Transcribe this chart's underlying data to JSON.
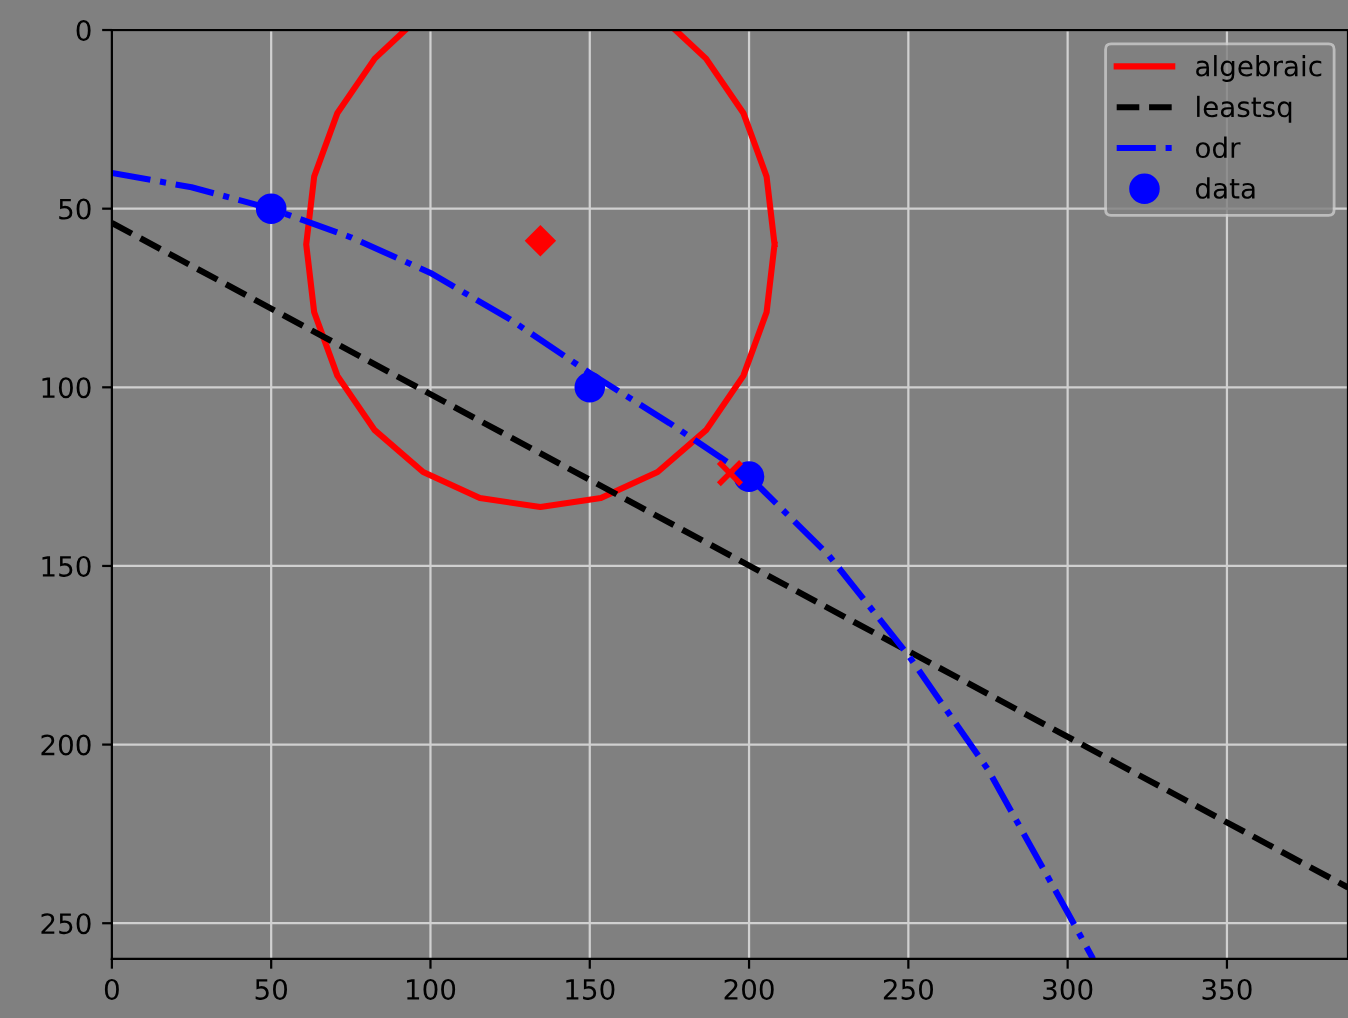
{
  "chart_data": {
    "type": "line",
    "xlim": [
      0,
      388
    ],
    "ylim": [
      260,
      0
    ],
    "xticks": [
      0,
      50,
      100,
      150,
      200,
      250,
      300,
      350
    ],
    "yticks": [
      0,
      50,
      100,
      150,
      200,
      250
    ],
    "grid": true,
    "legend": "top right",
    "series": [
      {
        "name": "algebraic",
        "color": "#ff0000",
        "line_style": "solid",
        "x": [
          208.0,
          205.5,
          198.2,
          186.5,
          171.3,
          153.5,
          134.5,
          115.5,
          97.7,
          82.5,
          70.8,
          63.5,
          61.0,
          63.5,
          70.8,
          82.5,
          92.1,
          null,
          176.9,
          186.5,
          198.2,
          205.5,
          208.0
        ],
        "values": [
          60,
          79.0,
          96.8,
          112.0,
          123.7,
          131.0,
          133.5,
          131.0,
          123.7,
          112.0,
          96.8,
          79.0,
          60,
          41.0,
          23.2,
          8.0,
          0,
          null,
          0,
          8.0,
          23.2,
          41.0,
          60
        ]
      },
      {
        "name": "leastsq",
        "color": "#000000",
        "line_style": "dashed",
        "x": [
          0,
          388
        ],
        "values": [
          54,
          240
        ]
      },
      {
        "name": "odr",
        "color": "#0000ff",
        "line_style": "dashdot",
        "x": [
          0,
          25,
          50,
          75,
          100,
          125,
          150,
          175,
          200,
          225,
          250,
          275,
          300,
          308
        ],
        "values": [
          40,
          44,
          50,
          58,
          68,
          81,
          96,
          110,
          125,
          147,
          175,
          207,
          247,
          260
        ]
      },
      {
        "name": "data",
        "type": "scatter",
        "color": "#0000ff",
        "marker": "circle",
        "x": [
          50,
          150,
          200
        ],
        "values": [
          50,
          100,
          125
        ]
      },
      {
        "type": "scatter",
        "color": "#ff0000",
        "marker": "diamond",
        "x": [
          134.5
        ],
        "values": [
          59
        ]
      },
      {
        "type": "scatter",
        "color": "#ff0000",
        "marker": "cross",
        "x": [
          194
        ],
        "values": [
          124
        ]
      }
    ]
  }
}
